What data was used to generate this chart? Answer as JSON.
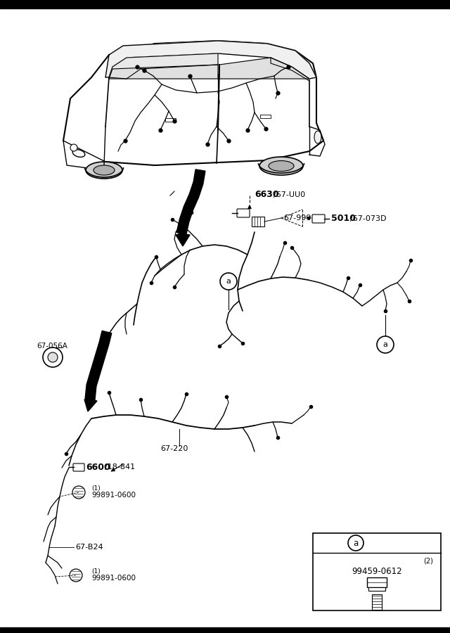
{
  "bg_color": "#ffffff",
  "fig_width": 6.4,
  "fig_height": 9.0,
  "dpi": 100,
  "labels": {
    "part_6630": "6630",
    "part_6630_suffix": "/67-UU0",
    "part_5010": "5010",
    "part_5010_suffix": "/67-073D",
    "part_67_999": "67-999",
    "part_6600": "6600",
    "part_6600_suffix": "/18-841",
    "part_67_220": "67-220",
    "part_67_056A": "67-056A",
    "part_67_B24": "67-B24",
    "part_99891_0600": "99891-0600",
    "part_99459_0612": "99459-0612",
    "label_a": "a",
    "qty_1": "(1)",
    "qty_2": "(2)"
  }
}
